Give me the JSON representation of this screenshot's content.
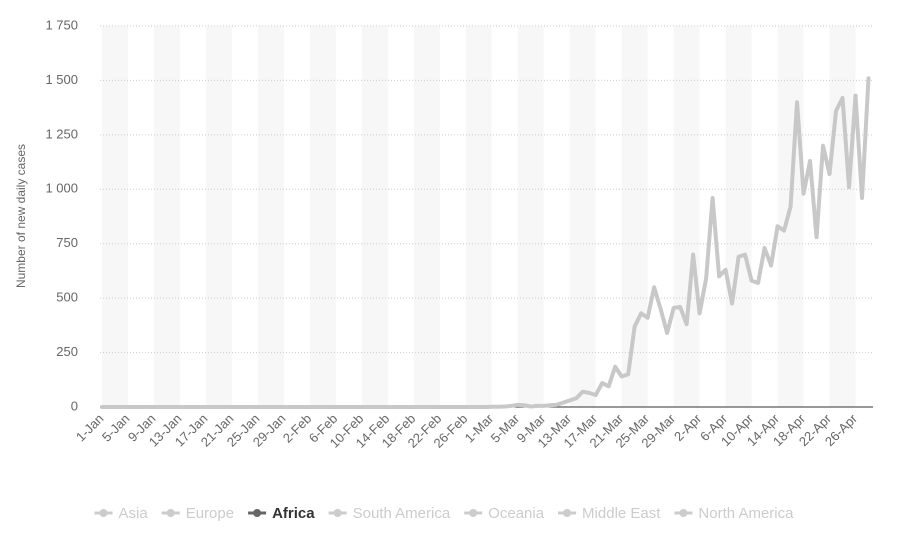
{
  "chart_data": {
    "type": "line",
    "y_label": "Number of new daily cases",
    "categories": [
      "1-Jan",
      null,
      null,
      null,
      "5-Jan",
      null,
      null,
      null,
      "9-Jan",
      null,
      null,
      null,
      "13-Jan",
      null,
      null,
      null,
      "17-Jan",
      null,
      null,
      null,
      "21-Jan",
      null,
      null,
      null,
      "25-Jan",
      null,
      null,
      null,
      "29-Jan",
      null,
      null,
      null,
      "2-Feb",
      null,
      null,
      null,
      "6-Feb",
      null,
      null,
      null,
      "10-Feb",
      null,
      null,
      null,
      "14-Feb",
      null,
      null,
      null,
      "18-Feb",
      null,
      null,
      null,
      "22-Feb",
      null,
      null,
      null,
      "26-Feb",
      null,
      null,
      null,
      "1-Mar",
      null,
      null,
      null,
      "5-Mar",
      null,
      null,
      null,
      "9-Mar",
      null,
      null,
      null,
      "13-Mar",
      null,
      null,
      null,
      "17-Mar",
      null,
      null,
      null,
      "21-Mar",
      null,
      null,
      null,
      "25-Mar",
      null,
      null,
      null,
      "29-Mar",
      null,
      null,
      null,
      "2-Apr",
      null,
      null,
      null,
      "6-Apr",
      null,
      null,
      null,
      "10-Apr",
      null,
      null,
      null,
      "14-Apr",
      null,
      null,
      null,
      "18-Apr",
      null,
      null,
      null,
      "22-Apr",
      null,
      null,
      null,
      "26-Apr",
      null,
      null
    ],
    "series": [
      {
        "name": "Asia",
        "color": "#cccccc",
        "visible": false
      },
      {
        "name": "Europe",
        "color": "#cccccc",
        "visible": false
      },
      {
        "name": "Africa",
        "color": "#c8c8c8",
        "visible": true,
        "values": [
          0,
          0,
          0,
          0,
          0,
          0,
          0,
          0,
          0,
          0,
          0,
          0,
          0,
          0,
          0,
          0,
          0,
          0,
          0,
          0,
          0,
          0,
          0,
          0,
          0,
          0,
          0,
          0,
          0,
          0,
          0,
          0,
          0,
          0,
          0,
          0,
          0,
          0,
          0,
          0,
          0,
          0,
          0,
          0,
          0,
          0,
          0,
          0,
          0,
          0,
          0,
          0,
          0,
          0,
          0,
          0,
          0,
          0,
          0,
          0,
          1,
          1,
          2,
          5,
          10,
          8,
          2,
          5,
          5,
          8,
          10,
          20,
          30,
          40,
          70,
          65,
          55,
          110,
          95,
          185,
          140,
          150,
          370,
          430,
          410,
          550,
          450,
          340,
          455,
          460,
          380,
          700,
          430,
          590,
          960,
          600,
          630,
          475,
          690,
          700,
          580,
          570,
          730,
          650,
          830,
          810,
          920,
          1400,
          980,
          1130,
          780,
          1200,
          1070,
          1360,
          1420,
          1010,
          1430,
          960,
          1510
        ]
      },
      {
        "name": "South America",
        "color": "#cccccc",
        "visible": false
      },
      {
        "name": "Oceania",
        "color": "#cccccc",
        "visible": false
      },
      {
        "name": "Middle East",
        "color": "#cccccc",
        "visible": false
      },
      {
        "name": "North America",
        "color": "#cccccc",
        "visible": false
      }
    ],
    "ylim": [
      0,
      1750
    ],
    "yticks": [
      0,
      250,
      500,
      750,
      {
        "value": 1000,
        "label": "1 000"
      },
      {
        "value": 1250,
        "label": "1 250"
      },
      {
        "value": 1500,
        "label": "1 500"
      },
      {
        "value": 1750,
        "label": "1 750"
      }
    ],
    "grid": true,
    "legend": "bottom"
  }
}
